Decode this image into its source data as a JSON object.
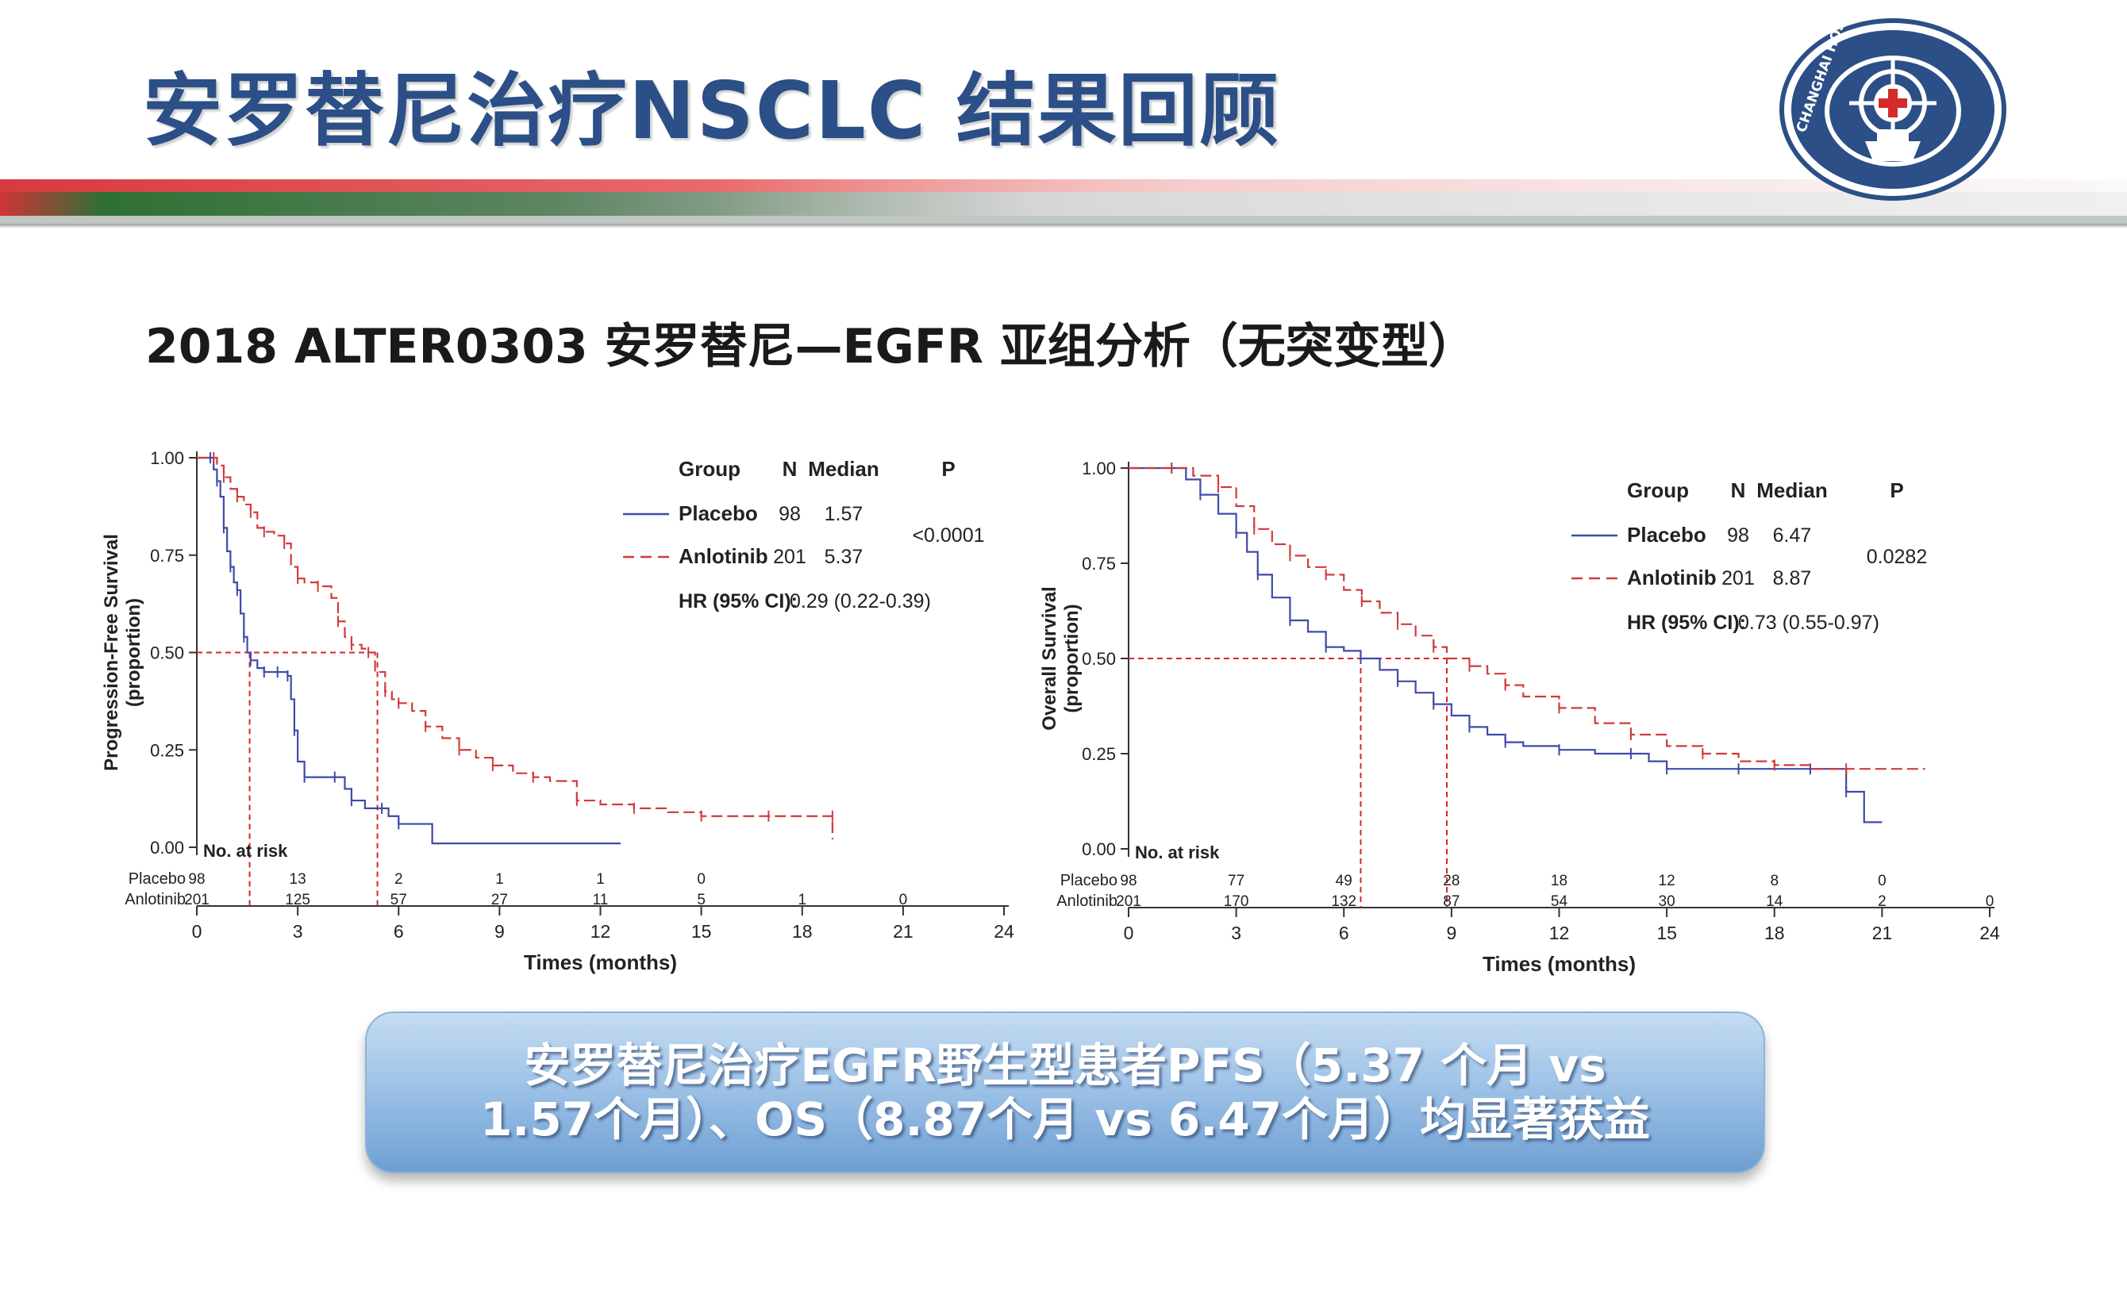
{
  "header": {
    "title": "安罗替尼治疗NSCLC 结果回顾",
    "subtitle": "2018 ALTER0303 安罗替尼—EGFR 亚组分析（无突变型）"
  },
  "logo": {
    "text": "CHANGHAI HOSPITAL",
    "colors": {
      "ring": "#2b4f86",
      "cross": "#d52b2b"
    }
  },
  "colors": {
    "placebo": "#3f4aa8",
    "anlotinib": "#d23a3a",
    "median_guide": "#d9262d"
  },
  "chart_data": [
    {
      "type": "line",
      "ylabel": "Progression-Free Survival (proportion)",
      "xlabel": "Times (months)",
      "xlim": [
        0,
        24
      ],
      "ylim": [
        0,
        1
      ],
      "xticks": [
        0,
        3,
        6,
        9,
        12,
        15,
        18,
        21,
        24
      ],
      "yticks": [
        "0.00",
        "0.25",
        "0.50",
        "0.75",
        "1.00"
      ],
      "legend": {
        "headers": [
          "Group",
          "N",
          "Median",
          "P"
        ],
        "rows": [
          {
            "name": "Placebo",
            "n": "98",
            "median": "1.57"
          },
          {
            "name": "Anlotinib",
            "n": "201",
            "median": "5.37"
          }
        ],
        "p": "<0.0001",
        "hr_label": "HR (95% CI):",
        "hr_value": "0.29 (0.22-0.39)"
      },
      "series": [
        {
          "name": "Placebo",
          "x": [
            0,
            0.4,
            0.5,
            0.6,
            0.7,
            0.8,
            0.9,
            1.0,
            1.1,
            1.2,
            1.3,
            1.4,
            1.5,
            1.6,
            1.8,
            2.0,
            2.2,
            2.4,
            2.6,
            2.7,
            2.8,
            2.9,
            3.0,
            3.2,
            3.6,
            4.1,
            4.4,
            4.6,
            5.0,
            5.5,
            5.7,
            6.0,
            7.0,
            12.6
          ],
          "y": [
            1,
            1,
            0.97,
            0.94,
            0.9,
            0.82,
            0.76,
            0.72,
            0.68,
            0.66,
            0.6,
            0.54,
            0.5,
            0.48,
            0.46,
            0.45,
            0.45,
            0.45,
            0.45,
            0.44,
            0.38,
            0.3,
            0.22,
            0.18,
            0.18,
            0.18,
            0.15,
            0.12,
            0.1,
            0.1,
            0.08,
            0.06,
            0.01,
            0.01
          ]
        },
        {
          "name": "Anlotinib",
          "x": [
            0,
            0.5,
            0.6,
            0.8,
            1.0,
            1.2,
            1.4,
            1.6,
            1.8,
            2.0,
            2.3,
            2.6,
            2.8,
            3.0,
            3.2,
            3.6,
            4.0,
            4.2,
            4.4,
            4.6,
            4.9,
            5.1,
            5.3,
            5.6,
            5.8,
            6.0,
            6.4,
            6.8,
            7.3,
            7.8,
            8.3,
            8.8,
            9.4,
            10.0,
            10.5,
            11.3,
            12.0,
            13.0,
            14.0,
            15.0,
            16.0,
            17.0,
            18.0,
            18.9,
            18.9
          ],
          "y": [
            1,
            1,
            0.98,
            0.95,
            0.92,
            0.9,
            0.88,
            0.86,
            0.82,
            0.81,
            0.8,
            0.78,
            0.72,
            0.69,
            0.68,
            0.67,
            0.64,
            0.58,
            0.54,
            0.52,
            0.51,
            0.5,
            0.45,
            0.4,
            0.38,
            0.37,
            0.35,
            0.31,
            0.28,
            0.25,
            0.23,
            0.21,
            0.19,
            0.18,
            0.17,
            0.12,
            0.11,
            0.1,
            0.09,
            0.08,
            0.08,
            0.08,
            0.08,
            0.08,
            0.02
          ]
        }
      ],
      "medians": [
        1.57,
        5.37
      ],
      "risk_table": {
        "label": "No. at risk",
        "rows": [
          {
            "name": "Placebo",
            "values": [
              "98",
              "13",
              "2",
              "1",
              "1",
              "0",
              "",
              "",
              ""
            ]
          },
          {
            "name": "Anlotinib",
            "values": [
              "201",
              "125",
              "57",
              "27",
              "11",
              "5",
              "1",
              "0",
              ""
            ]
          }
        ]
      }
    },
    {
      "type": "line",
      "ylabel": "Overall Survival (proportion)",
      "xlabel": "Times (months)",
      "xlim": [
        0,
        24
      ],
      "ylim": [
        0,
        1
      ],
      "xticks": [
        0,
        3,
        6,
        9,
        12,
        15,
        18,
        21,
        24
      ],
      "yticks": [
        "0.00",
        "0.25",
        "0.50",
        "0.75",
        "1.00"
      ],
      "legend": {
        "headers": [
          "Group",
          "N",
          "Median",
          "P"
        ],
        "rows": [
          {
            "name": "Placebo",
            "n": "98",
            "median": "6.47"
          },
          {
            "name": "Anlotinib",
            "n": "201",
            "median": "8.87"
          }
        ],
        "p": "0.0282",
        "hr_label": "HR (95% CI):",
        "hr_value": "0.73 (0.55-0.97)"
      },
      "series": [
        {
          "name": "Placebo",
          "x": [
            0,
            1.2,
            1.6,
            2.0,
            2.5,
            3.0,
            3.3,
            3.6,
            4.0,
            4.5,
            5.0,
            5.5,
            6.0,
            6.47,
            7.0,
            7.5,
            8.0,
            8.5,
            9.0,
            9.5,
            10.0,
            10.5,
            11.0,
            12.0,
            13.0,
            14.0,
            14.5,
            15.0,
            16.0,
            17.0,
            18.0,
            19.0,
            19.8,
            20.0,
            20.5,
            21.0
          ],
          "y": [
            1,
            1,
            0.97,
            0.93,
            0.88,
            0.83,
            0.78,
            0.72,
            0.66,
            0.6,
            0.57,
            0.53,
            0.52,
            0.5,
            0.47,
            0.44,
            0.41,
            0.38,
            0.35,
            0.32,
            0.3,
            0.28,
            0.27,
            0.26,
            0.25,
            0.25,
            0.23,
            0.21,
            0.21,
            0.21,
            0.21,
            0.21,
            0.21,
            0.15,
            0.07,
            0.07
          ]
        },
        {
          "name": "Anlotinib",
          "x": [
            0,
            1.2,
            1.8,
            2.5,
            3.0,
            3.5,
            4.0,
            4.5,
            5.0,
            5.5,
            6.0,
            6.5,
            7.0,
            7.5,
            8.0,
            8.5,
            8.87,
            9.5,
            10.0,
            10.5,
            11.0,
            12.0,
            13.0,
            14.0,
            15.0,
            16.0,
            17.0,
            18.0,
            19.0,
            20.0,
            21.0,
            22.2
          ],
          "y": [
            1,
            1,
            0.98,
            0.95,
            0.9,
            0.84,
            0.8,
            0.77,
            0.74,
            0.72,
            0.68,
            0.65,
            0.62,
            0.59,
            0.56,
            0.53,
            0.5,
            0.48,
            0.46,
            0.43,
            0.4,
            0.37,
            0.33,
            0.3,
            0.27,
            0.25,
            0.23,
            0.22,
            0.21,
            0.21,
            0.21,
            0.21
          ]
        }
      ],
      "medians": [
        6.47,
        8.87
      ],
      "risk_table": {
        "label": "No. at risk",
        "rows": [
          {
            "name": "Placebo",
            "values": [
              "98",
              "77",
              "49",
              "28",
              "18",
              "12",
              "8",
              "0",
              ""
            ]
          },
          {
            "name": "Anlotinib",
            "values": [
              "201",
              "170",
              "132",
              "87",
              "54",
              "30",
              "14",
              "2",
              "0"
            ]
          }
        ]
      }
    }
  ],
  "callout": {
    "line1": "安罗替尼治疗EGFR野生型患者PFS（5.37 个月 vs",
    "line2": "1.57个月）、OS（8.87个月 vs 6.47个月）均显著获益"
  }
}
